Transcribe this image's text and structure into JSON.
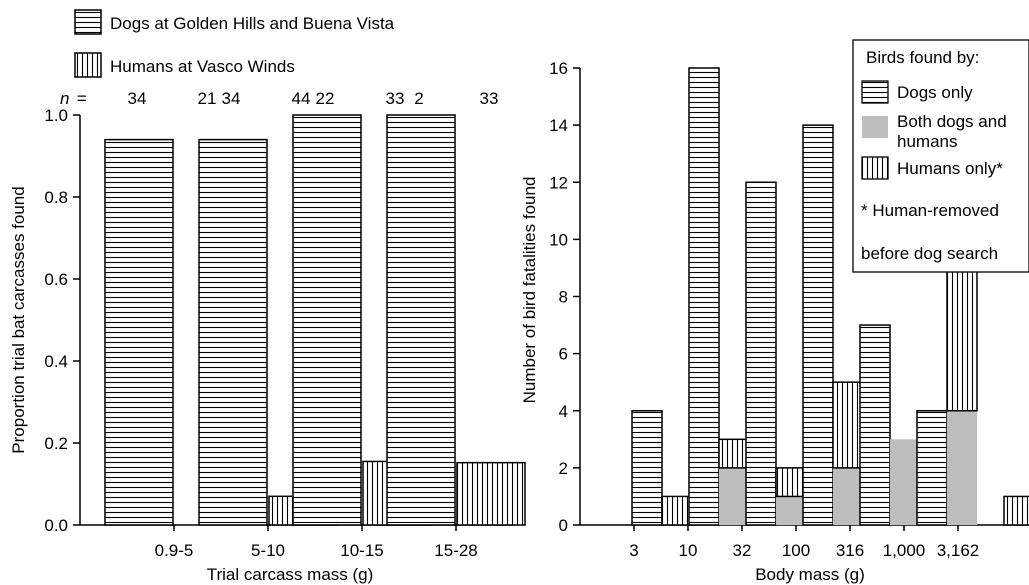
{
  "chart_data": [
    {
      "type": "bar",
      "xlabel": "Trial carcass mass (g)",
      "ylabel": "Proportion trial bat carcasses found",
      "ylim": [
        0,
        1.0
      ],
      "yticks": [
        "0.0",
        "0.2",
        "0.4",
        "0.6",
        "0.8",
        "1.0"
      ],
      "categories": [
        "0.9-5",
        "5-10",
        "10-15",
        "15-28"
      ],
      "n_prefix": "n",
      "n_equals": " = ",
      "series": [
        {
          "name": "Dogs at Golden Hills and Buena Vista",
          "pattern": "horizontal",
          "values": [
            0.94,
            0.94,
            1.0,
            1.0
          ],
          "n": [
            "34",
            "34",
            "22",
            "2"
          ]
        },
        {
          "name": "Humans at Vasco Winds",
          "pattern": "vertical",
          "values": [
            0.0,
            0.07,
            0.155,
            0.152
          ],
          "n": [
            "21",
            "44",
            "33",
            "33"
          ]
        }
      ],
      "legend_position": "top-left",
      "grid": false
    },
    {
      "type": "bar",
      "stacked": true,
      "xlabel": "Body mass (g)",
      "ylabel": "Number of bird fatalities found",
      "ylim": [
        0,
        16
      ],
      "yticks": [
        "0",
        "2",
        "4",
        "6",
        "8",
        "10",
        "12",
        "14",
        "16"
      ],
      "xticks": [
        "3",
        "10",
        "32",
        "100",
        "316",
        "1,000",
        "3,162"
      ],
      "legend_title": "Birds found by:",
      "legend_note": [
        "* Human-removed",
        "before dog search"
      ],
      "legend_position": "top-right",
      "grid": false,
      "series": [
        {
          "name": "Dogs only",
          "pattern": "horizontal"
        },
        {
          "name": "Both dogs and humans",
          "name_lines": [
            "Both dogs and",
            "humans"
          ],
          "pattern": "gray",
          "color": "#bdbdbd"
        },
        {
          "name": "Humans only*",
          "pattern": "vertical"
        }
      ],
      "bars": [
        {
          "bin": 0,
          "kind": "dogs",
          "segments": [
            {
              "series": 0,
              "value": 4
            }
          ]
        },
        {
          "bin": 0,
          "kind": "humans",
          "segments": [
            {
              "series": 2,
              "value": 1
            }
          ]
        },
        {
          "bin": 1,
          "kind": "dogs",
          "segments": [
            {
              "series": 0,
              "value": 16
            }
          ]
        },
        {
          "bin": 1,
          "kind": "humans",
          "segments": [
            {
              "series": 1,
              "value": 2
            },
            {
              "series": 2,
              "value": 1
            }
          ]
        },
        {
          "bin": 2,
          "kind": "dogs",
          "segments": [
            {
              "series": 0,
              "value": 12
            }
          ]
        },
        {
          "bin": 2,
          "kind": "humans",
          "segments": [
            {
              "series": 1,
              "value": 1
            },
            {
              "series": 2,
              "value": 1
            }
          ]
        },
        {
          "bin": 3,
          "kind": "dogs",
          "segments": [
            {
              "series": 0,
              "value": 14
            }
          ]
        },
        {
          "bin": 3,
          "kind": "humans",
          "segments": [
            {
              "series": 1,
              "value": 2
            },
            {
              "series": 2,
              "value": 3
            }
          ]
        },
        {
          "bin": 4,
          "kind": "dogs",
          "segments": [
            {
              "series": 0,
              "value": 7
            }
          ]
        },
        {
          "bin": 4,
          "kind": "humans",
          "segments": [
            {
              "series": 1,
              "value": 3
            }
          ]
        },
        {
          "bin": 5,
          "kind": "dogs",
          "segments": [
            {
              "series": 0,
              "value": 4
            }
          ]
        },
        {
          "bin": 5,
          "kind": "humans",
          "segments": [
            {
              "series": 1,
              "value": 4
            },
            {
              "series": 2,
              "value": 5
            }
          ]
        },
        {
          "bin": 6,
          "kind": "dogs",
          "segments": [
            {
              "series": 0,
              "value": 0
            }
          ]
        },
        {
          "bin": 6,
          "kind": "humans",
          "segments": [
            {
              "series": 2,
              "value": 1
            }
          ]
        }
      ]
    }
  ]
}
